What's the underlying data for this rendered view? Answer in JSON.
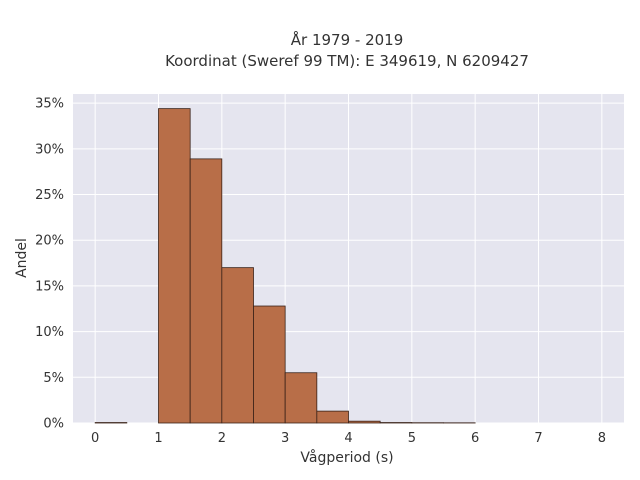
{
  "chart_data": {
    "type": "bar",
    "title_line1": "År 1979 - 2019",
    "title_line2": "Koordinat (Sweref 99 TM): E 349619, N 6209427",
    "xlabel": "Vågperiod (s)",
    "ylabel": "Andel",
    "xlim": [
      -0.35,
      8.35
    ],
    "ylim": [
      0,
      36
    ],
    "x_ticks": [
      0,
      1,
      2,
      3,
      4,
      5,
      6,
      7,
      8
    ],
    "x_tick_labels": [
      "0",
      "1",
      "2",
      "3",
      "4",
      "5",
      "6",
      "7",
      "8"
    ],
    "y_ticks": [
      0,
      5,
      10,
      15,
      20,
      25,
      30,
      35
    ],
    "y_tick_labels": [
      "0%",
      "5%",
      "10%",
      "15%",
      "20%",
      "25%",
      "30%",
      "35%"
    ],
    "bin_width": 0.5,
    "bins": [
      {
        "x0": 0.0,
        "x1": 0.5,
        "value": 0.05
      },
      {
        "x0": 0.5,
        "x1": 1.0,
        "value": 0.0
      },
      {
        "x0": 1.0,
        "x1": 1.5,
        "value": 34.4
      },
      {
        "x0": 1.5,
        "x1": 2.0,
        "value": 28.9
      },
      {
        "x0": 2.0,
        "x1": 2.5,
        "value": 17.0
      },
      {
        "x0": 2.5,
        "x1": 3.0,
        "value": 12.8
      },
      {
        "x0": 3.0,
        "x1": 3.5,
        "value": 5.5
      },
      {
        "x0": 3.5,
        "x1": 4.0,
        "value": 1.3
      },
      {
        "x0": 4.0,
        "x1": 4.5,
        "value": 0.2
      },
      {
        "x0": 4.5,
        "x1": 5.0,
        "value": 0.05
      },
      {
        "x0": 5.0,
        "x1": 5.5,
        "value": 0.03
      },
      {
        "x0": 5.5,
        "x1": 6.0,
        "value": 0.02
      }
    ],
    "grid": true,
    "colors": {
      "bar_fill": "#b86e48",
      "bar_stroke": "#3a2218",
      "plot_bg": "#e5e5ef",
      "grid": "#ffffff"
    }
  }
}
